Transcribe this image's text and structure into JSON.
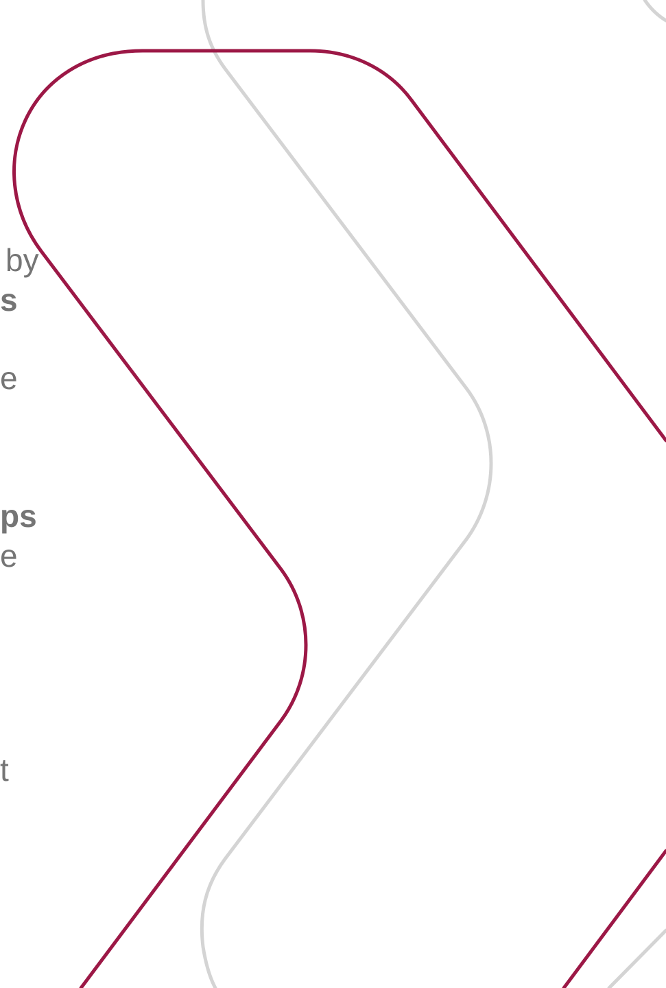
{
  "text_fragments": {
    "by": "by",
    "s": "s",
    "e_first": "e",
    "ps": "ps",
    "e_second": "e",
    "t": "t"
  },
  "colors": {
    "background": "#ffffff",
    "text": "#757575",
    "accent_chevron": "#9c1846",
    "gray_chevron": "#d4d4d4"
  },
  "decorations": {
    "chevron_outlines": [
      "maroon-chevron-outline",
      "gray-chevron-outline"
    ]
  }
}
